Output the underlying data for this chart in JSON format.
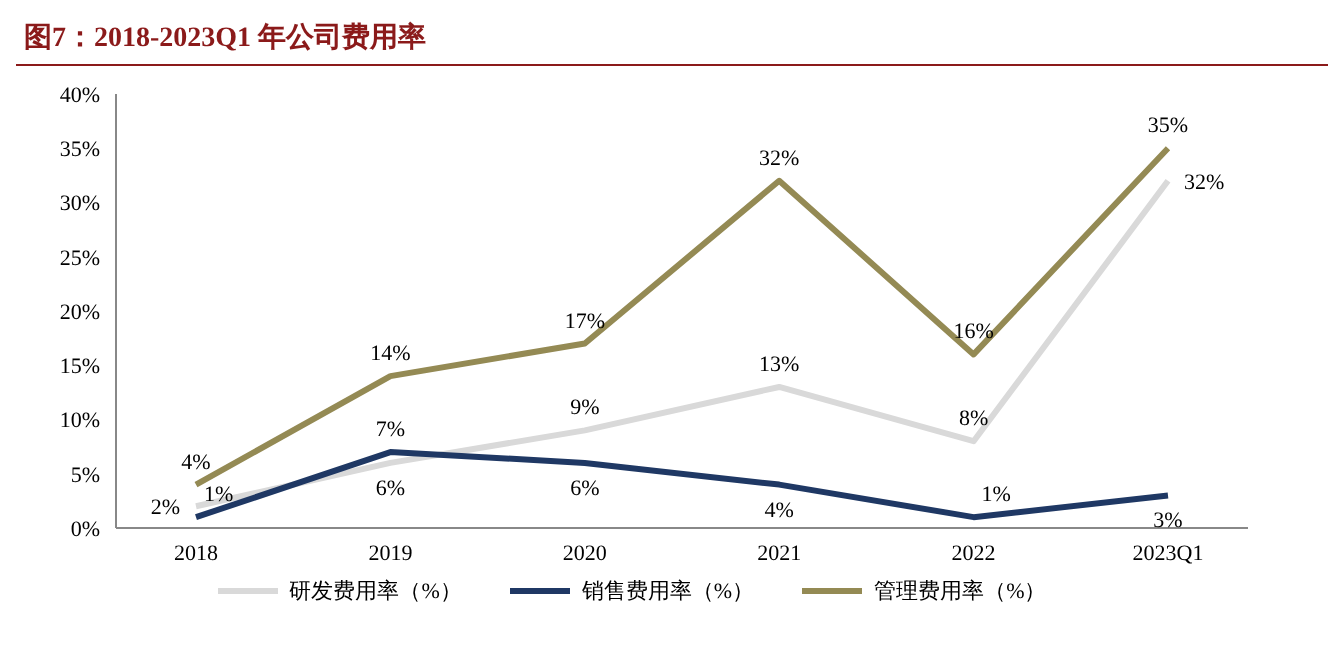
{
  "chart_data": {
    "type": "line",
    "title": "图7：2018-2023Q1 年公司费用率",
    "categories": [
      "2018",
      "2019",
      "2020",
      "2021",
      "2022",
      "2023Q1"
    ],
    "series": [
      {
        "name": "研发费用率（%）",
        "color": "#d9d9d9",
        "values": [
          2,
          6,
          9,
          13,
          8,
          32
        ],
        "value_labels": [
          "2%",
          "6%",
          "9%",
          "13%",
          "8%",
          "32%"
        ]
      },
      {
        "name": "销售费用率（%）",
        "color": "#1f3864",
        "values": [
          1,
          7,
          6,
          4,
          1,
          3
        ],
        "value_labels": [
          "1%",
          "7%",
          "6%",
          "4%",
          "1%",
          "3%"
        ]
      },
      {
        "name": "管理费用率（%）",
        "color": "#948a54",
        "values": [
          4,
          14,
          17,
          32,
          16,
          35
        ],
        "value_labels": [
          "4%",
          "14%",
          "17%",
          "32%",
          "16%",
          "35%"
        ]
      }
    ],
    "ylim": [
      0,
      40
    ],
    "yticks": [
      {
        "value": 0,
        "label": "0%"
      },
      {
        "value": 5,
        "label": "5%"
      },
      {
        "value": 10,
        "label": "10%"
      },
      {
        "value": 15,
        "label": "15%"
      },
      {
        "value": 20,
        "label": "20%"
      },
      {
        "value": 25,
        "label": "25%"
      },
      {
        "value": 30,
        "label": "30%"
      },
      {
        "value": 35,
        "label": "35%"
      },
      {
        "value": 40,
        "label": "40%"
      }
    ],
    "grid": false,
    "legend": "bottom",
    "marker": "none",
    "line_style": "solid"
  }
}
